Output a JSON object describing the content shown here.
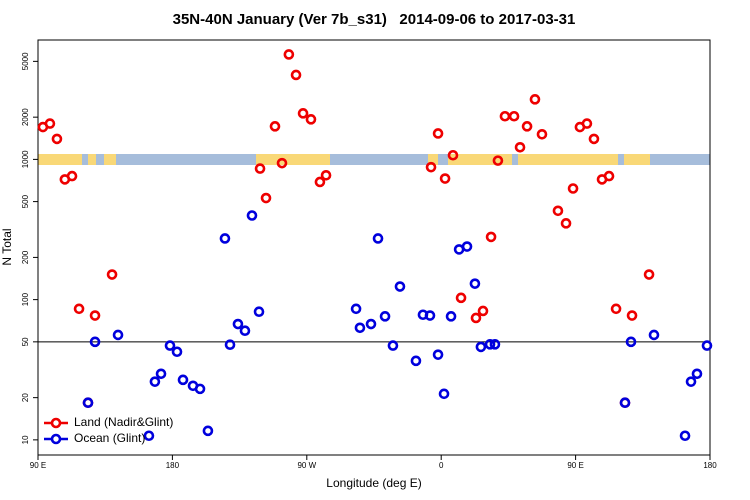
{
  "chart_data": {
    "type": "scatter",
    "title": "35N-40N January (Ver 7b_s31)   2014-09-06 to 2017-03-31",
    "x_label": "Longitude (deg E)",
    "y_label": "N Total",
    "log_y": true,
    "hline": 50,
    "legend": "bottom-left",
    "xlim": [
      90,
      540
    ],
    "ylim": [
      7.8,
      7100
    ],
    "xticks": [
      {
        "value": 90,
        "label": "90 E"
      },
      180,
      {
        "value": 270,
        "label": "90 W"
      },
      {
        "value": 360,
        "label": "0"
      },
      {
        "value": 450,
        "label": "90 E"
      },
      {
        "value": 540,
        "label": "180"
      }
    ],
    "yticks": [
      10,
      20,
      50,
      100,
      200,
      500,
      1000,
      2000,
      5000
    ],
    "series": [
      {
        "name": "Land (Nadir&Glint)",
        "color": "#ee0000",
        "x": [
          93.3,
          98,
          102.7,
          108,
          112.8,
          117.5,
          123.5,
          128.2,
          139.6,
          238.7,
          242.7,
          248.7,
          253.4,
          258,
          262.8,
          267.5,
          272.8,
          278.8,
          282.9,
          353.2,
          357.9,
          362.6,
          367.9,
          373.3,
          383.3,
          388,
          393.4,
          398,
          402.7,
          408.8,
          412.8,
          417.5,
          422.8,
          427.5,
          438.2,
          443.6,
          448.3,
          452.9,
          457.6,
          462.3,
          467.7,
          472.4,
          477.1,
          483.1,
          487.8,
          499.2
        ],
        "values": [
          1700,
          1800,
          1400,
          720,
          760,
          86,
          18.4,
          77,
          151,
          860,
          530,
          1720,
          940,
          5600,
          4000,
          2130,
          1930,
          690,
          770,
          880,
          1530,
          730,
          1070,
          103,
          74,
          83,
          280,
          980,
          2030,
          2030,
          1220,
          1720,
          2680,
          1510,
          430,
          350,
          620,
          1700,
          1800,
          1400,
          720,
          760,
          86,
          18.4,
          77,
          151
        ]
      },
      {
        "name": "Ocean (Glint)",
        "color": "#0000dd",
        "x": [
          123.5,
          128.2,
          143.6,
          164.3,
          168.3,
          172.4,
          178.4,
          183.1,
          187.1,
          193.8,
          198.5,
          203.8,
          215.2,
          218.6,
          223.9,
          228.6,
          233.3,
          238,
          303,
          305.6,
          313,
          317.7,
          322.4,
          327.7,
          332.4,
          343.1,
          347.8,
          352.5,
          357.9,
          361.9,
          366.6,
          372,
          377.3,
          382.6,
          386.6,
          392.7,
          396,
          483.1,
          487.1,
          502.5,
          523.3,
          527.3,
          531.3,
          538
        ],
        "values": [
          18.4,
          50,
          56,
          10.7,
          26,
          29.6,
          47,
          42.5,
          26.8,
          24.3,
          23.1,
          11.6,
          273,
          47.7,
          67,
          60,
          398,
          82,
          86,
          63,
          67,
          273,
          76,
          47,
          124,
          36.6,
          78,
          77,
          40.5,
          21.3,
          76,
          228,
          239,
          130,
          46,
          48,
          48,
          18.4,
          50,
          56,
          10.7,
          26,
          29.6,
          47
        ]
      }
    ]
  }
}
